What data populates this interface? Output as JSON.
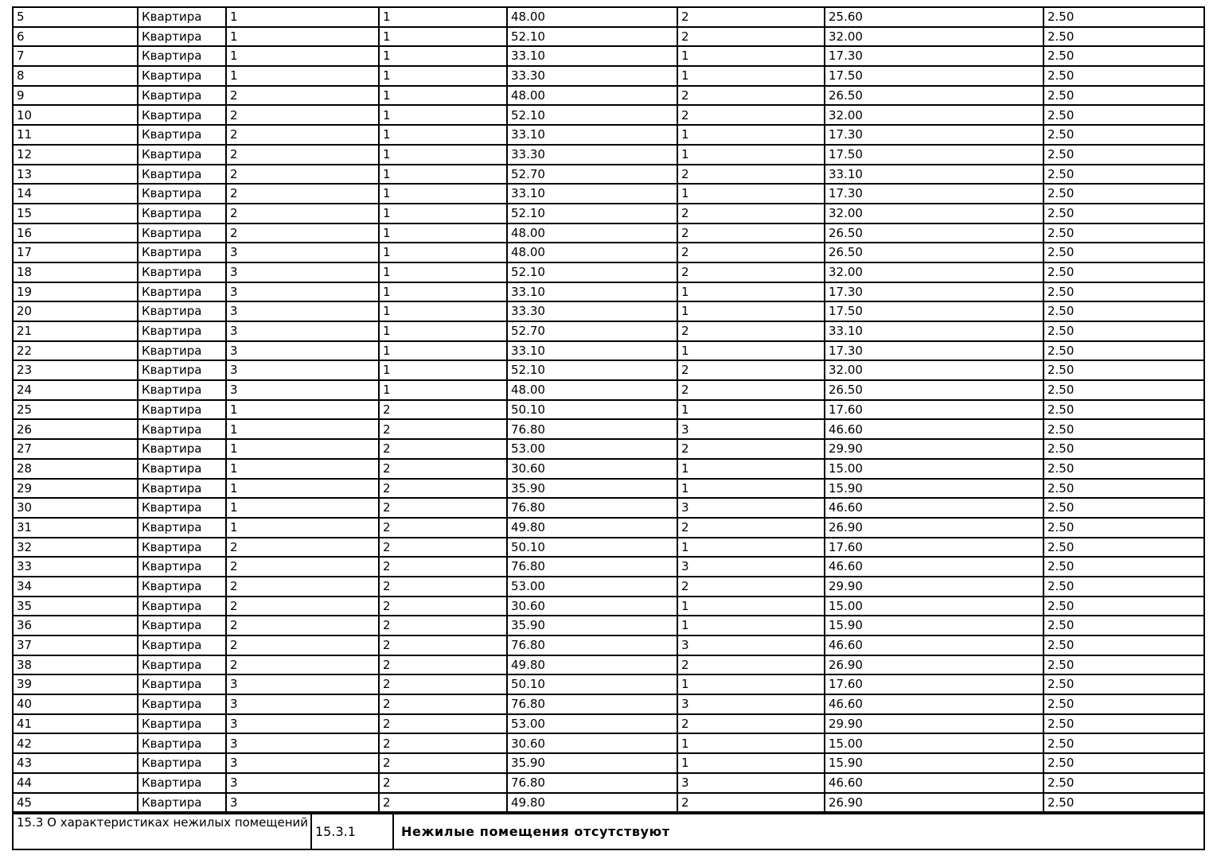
{
  "colors": {
    "background": "#ffffff",
    "border": "#000000",
    "text": "#000000"
  },
  "apartments_table": {
    "rows": [
      [
        "5",
        "Квартира",
        "1",
        "1",
        "48.00",
        "2",
        "25.60",
        "2.50"
      ],
      [
        "6",
        "Квартира",
        "1",
        "1",
        "52.10",
        "2",
        "32.00",
        "2.50"
      ],
      [
        "7",
        "Квартира",
        "1",
        "1",
        "33.10",
        "1",
        "17.30",
        "2.50"
      ],
      [
        "8",
        "Квартира",
        "1",
        "1",
        "33.30",
        "1",
        "17.50",
        "2.50"
      ],
      [
        "9",
        "Квартира",
        "2",
        "1",
        "48.00",
        "2",
        "26.50",
        "2.50"
      ],
      [
        "10",
        "Квартира",
        "2",
        "1",
        "52.10",
        "2",
        "32.00",
        "2.50"
      ],
      [
        "11",
        "Квартира",
        "2",
        "1",
        "33.10",
        "1",
        "17.30",
        "2.50"
      ],
      [
        "12",
        "Квартира",
        "2",
        "1",
        "33.30",
        "1",
        "17.50",
        "2.50"
      ],
      [
        "13",
        "Квартира",
        "2",
        "1",
        "52.70",
        "2",
        "33.10",
        "2.50"
      ],
      [
        "14",
        "Квартира",
        "2",
        "1",
        "33.10",
        "1",
        "17.30",
        "2.50"
      ],
      [
        "15",
        "Квартира",
        "2",
        "1",
        "52.10",
        "2",
        "32.00",
        "2.50"
      ],
      [
        "16",
        "Квартира",
        "2",
        "1",
        "48.00",
        "2",
        "26.50",
        "2.50"
      ],
      [
        "17",
        "Квартира",
        "3",
        "1",
        "48.00",
        "2",
        "26.50",
        "2.50"
      ],
      [
        "18",
        "Квартира",
        "3",
        "1",
        "52.10",
        "2",
        "32.00",
        "2.50"
      ],
      [
        "19",
        "Квартира",
        "3",
        "1",
        "33.10",
        "1",
        "17.30",
        "2.50"
      ],
      [
        "20",
        "Квартира",
        "3",
        "1",
        "33.30",
        "1",
        "17.50",
        "2.50"
      ],
      [
        "21",
        "Квартира",
        "3",
        "1",
        "52.70",
        "2",
        "33.10",
        "2.50"
      ],
      [
        "22",
        "Квартира",
        "3",
        "1",
        "33.10",
        "1",
        "17.30",
        "2.50"
      ],
      [
        "23",
        "Квартира",
        "3",
        "1",
        "52.10",
        "2",
        "32.00",
        "2.50"
      ],
      [
        "24",
        "Квартира",
        "3",
        "1",
        "48.00",
        "2",
        "26.50",
        "2.50"
      ],
      [
        "25",
        "Квартира",
        "1",
        "2",
        "50.10",
        "1",
        "17.60",
        "2.50"
      ],
      [
        "26",
        "Квартира",
        "1",
        "2",
        "76.80",
        "3",
        "46.60",
        "2.50"
      ],
      [
        "27",
        "Квартира",
        "1",
        "2",
        "53.00",
        "2",
        "29.90",
        "2.50"
      ],
      [
        "28",
        "Квартира",
        "1",
        "2",
        "30.60",
        "1",
        "15.00",
        "2.50"
      ],
      [
        "29",
        "Квартира",
        "1",
        "2",
        "35.90",
        "1",
        "15.90",
        "2.50"
      ],
      [
        "30",
        "Квартира",
        "1",
        "2",
        "76.80",
        "3",
        "46.60",
        "2.50"
      ],
      [
        "31",
        "Квартира",
        "1",
        "2",
        "49.80",
        "2",
        "26.90",
        "2.50"
      ],
      [
        "32",
        "Квартира",
        "2",
        "2",
        "50.10",
        "1",
        "17.60",
        "2.50"
      ],
      [
        "33",
        "Квартира",
        "2",
        "2",
        "76.80",
        "3",
        "46.60",
        "2.50"
      ],
      [
        "34",
        "Квартира",
        "2",
        "2",
        "53.00",
        "2",
        "29.90",
        "2.50"
      ],
      [
        "35",
        "Квартира",
        "2",
        "2",
        "30.60",
        "1",
        "15.00",
        "2.50"
      ],
      [
        "36",
        "Квартира",
        "2",
        "2",
        "35.90",
        "1",
        "15.90",
        "2.50"
      ],
      [
        "37",
        "Квартира",
        "2",
        "2",
        "76.80",
        "3",
        "46.60",
        "2.50"
      ],
      [
        "38",
        "Квартира",
        "2",
        "2",
        "49.80",
        "2",
        "26.90",
        "2.50"
      ],
      [
        "39",
        "Квартира",
        "3",
        "2",
        "50.10",
        "1",
        "17.60",
        "2.50"
      ],
      [
        "40",
        "Квартира",
        "3",
        "2",
        "76.80",
        "3",
        "46.60",
        "2.50"
      ],
      [
        "41",
        "Квартира",
        "3",
        "2",
        "53.00",
        "2",
        "29.90",
        "2.50"
      ],
      [
        "42",
        "Квартира",
        "3",
        "2",
        "30.60",
        "1",
        "15.00",
        "2.50"
      ],
      [
        "43",
        "Квартира",
        "3",
        "2",
        "35.90",
        "1",
        "15.90",
        "2.50"
      ],
      [
        "44",
        "Квартира",
        "3",
        "2",
        "76.80",
        "3",
        "46.60",
        "2.50"
      ],
      [
        "45",
        "Квартира",
        "3",
        "2",
        "49.80",
        "2",
        "26.90",
        "2.50"
      ]
    ]
  },
  "footer": {
    "section_label": "15.3 О характеристиках нежилых помещений",
    "clause_number": "15.3.1",
    "statement": "Нежилые помещения отсутствуют"
  }
}
